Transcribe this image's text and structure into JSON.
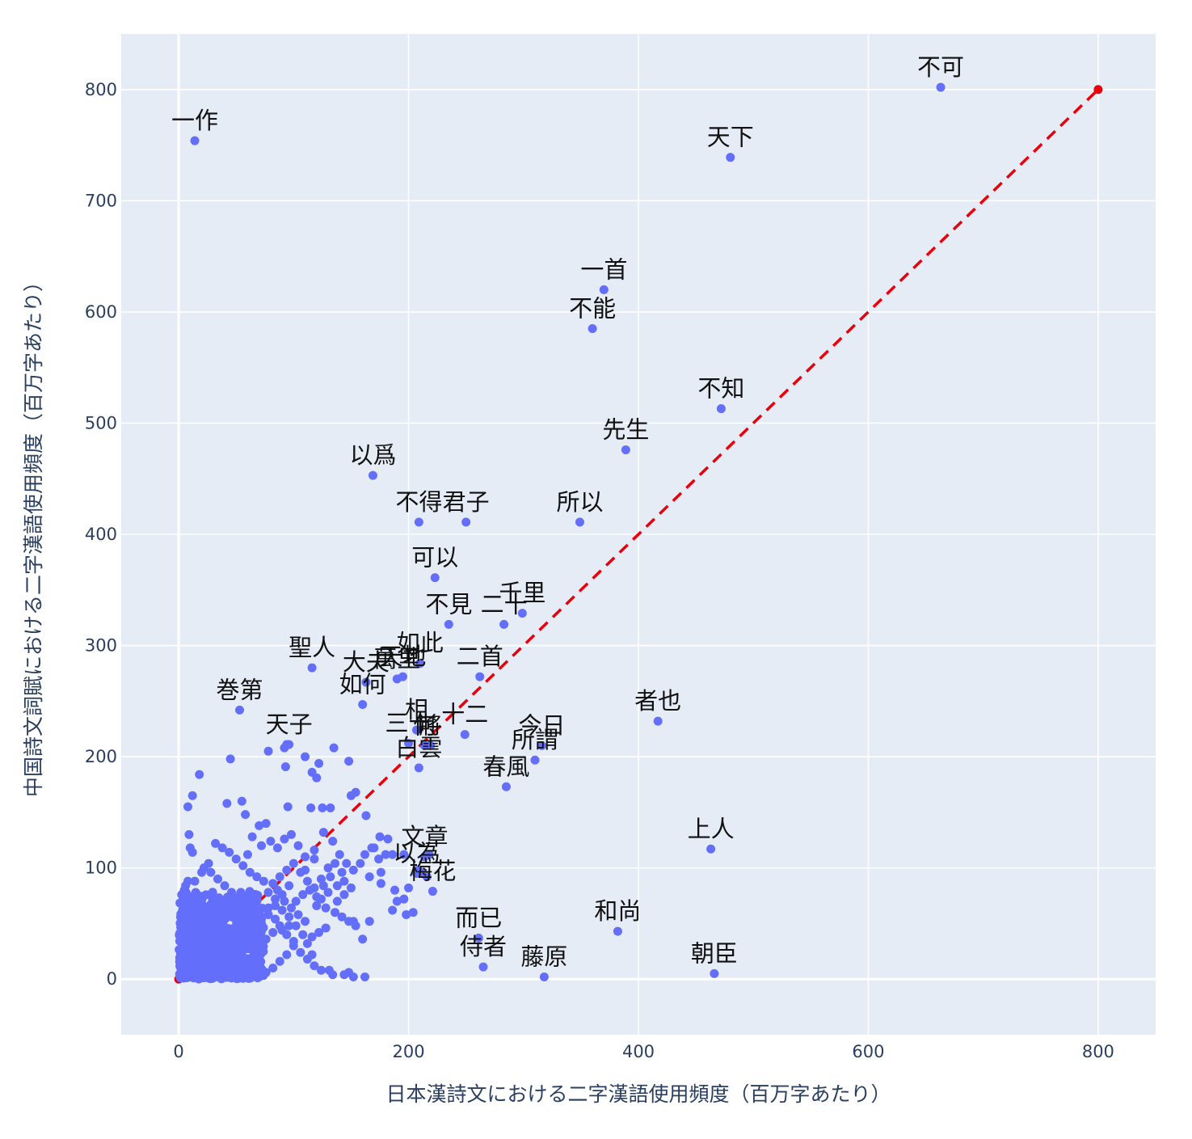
{
  "chart_data": {
    "type": "scatter",
    "xlabel": "日本漢詩文における二字漢語使用頻度（百万字あたり）",
    "ylabel": "中国詩文詞賦における二字漢語使用頻度（百万字あたり）",
    "xlim": [
      -50,
      850
    ],
    "ylim": [
      -50,
      850
    ],
    "xticks": [
      0,
      200,
      400,
      600,
      800
    ],
    "yticks": [
      0,
      100,
      200,
      300,
      400,
      500,
      600,
      700,
      800
    ],
    "grid": true,
    "point_color": "#636efa",
    "reference_line": {
      "x": [
        0,
        800
      ],
      "y": [
        0,
        800
      ],
      "color": "#e8000b",
      "style": "dashed"
    },
    "labeled_points": [
      {
        "label": "不可",
        "x": 663,
        "y": 802
      },
      {
        "label": "天下",
        "x": 480,
        "y": 739
      },
      {
        "label": "一作",
        "x": 14,
        "y": 754
      },
      {
        "label": "一首",
        "x": 370,
        "y": 620
      },
      {
        "label": "不能",
        "x": 360,
        "y": 585
      },
      {
        "label": "不知",
        "x": 472,
        "y": 513
      },
      {
        "label": "先生",
        "x": 389,
        "y": 476
      },
      {
        "label": "以爲",
        "x": 169,
        "y": 453
      },
      {
        "label": "不得",
        "x": 209,
        "y": 411
      },
      {
        "label": "君子",
        "x": 250,
        "y": 411
      },
      {
        "label": "所以",
        "x": 349,
        "y": 411
      },
      {
        "label": "可以",
        "x": 223,
        "y": 361
      },
      {
        "label": "千里",
        "x": 299,
        "y": 329
      },
      {
        "label": "不見",
        "x": 235,
        "y": 319
      },
      {
        "label": "二十",
        "x": 283,
        "y": 319
      },
      {
        "label": "聖人",
        "x": 116,
        "y": 280
      },
      {
        "label": "如此",
        "x": 210,
        "y": 284
      },
      {
        "label": "二首",
        "x": 262,
        "y": 272
      },
      {
        "label": "萬里",
        "x": 190,
        "y": 270
      },
      {
        "label": "天地",
        "x": 195,
        "y": 272
      },
      {
        "label": "大夫",
        "x": 163,
        "y": 267
      },
      {
        "label": "巻第",
        "x": 53,
        "y": 242
      },
      {
        "label": "者也",
        "x": 417,
        "y": 232
      },
      {
        "label": "如何",
        "x": 160,
        "y": 247
      },
      {
        "label": "十二",
        "x": 249,
        "y": 220
      },
      {
        "label": "三十",
        "x": 200,
        "y": 212
      },
      {
        "label": "相",
        "x": 207,
        "y": 224
      },
      {
        "label": "何",
        "x": 214,
        "y": 210
      },
      {
        "label": "將",
        "x": 219,
        "y": 210
      },
      {
        "label": "天子",
        "x": 96,
        "y": 211
      },
      {
        "label": "今日",
        "x": 316,
        "y": 210
      },
      {
        "label": "所謂",
        "x": 310,
        "y": 197
      },
      {
        "label": "春風",
        "x": 285,
        "y": 173
      },
      {
        "label": "白雲",
        "x": 209,
        "y": 190
      },
      {
        "label": "上人",
        "x": 463,
        "y": 117
      },
      {
        "label": "文章",
        "x": 214,
        "y": 110
      },
      {
        "label": "以為",
        "x": 207,
        "y": 95
      },
      {
        "label": "梅花",
        "x": 221,
        "y": 79
      },
      {
        "label": "和尚",
        "x": 382,
        "y": 43
      },
      {
        "label": "而已",
        "x": 261,
        "y": 37
      },
      {
        "label": "侍者",
        "x": 265,
        "y": 11
      },
      {
        "label": "藤原",
        "x": 318,
        "y": 2
      },
      {
        "label": "朝臣",
        "x": 466,
        "y": 5
      }
    ],
    "unlabeled_points": [
      [
        18,
        184
      ],
      [
        45,
        198
      ],
      [
        12,
        165
      ],
      [
        8,
        155
      ],
      [
        55,
        160
      ],
      [
        42,
        158
      ],
      [
        58,
        148
      ],
      [
        95,
        155
      ],
      [
        115,
        154
      ],
      [
        125,
        154
      ],
      [
        132,
        154
      ],
      [
        150,
        165
      ],
      [
        154,
        168
      ],
      [
        163,
        147
      ],
      [
        148,
        196
      ],
      [
        135,
        208
      ],
      [
        110,
        200
      ],
      [
        122,
        194
      ],
      [
        116,
        186
      ],
      [
        120,
        181
      ],
      [
        78,
        205
      ],
      [
        93,
        191
      ],
      [
        94,
        211
      ],
      [
        92,
        208
      ],
      [
        76,
        140
      ],
      [
        70,
        138
      ],
      [
        64,
        128
      ],
      [
        60,
        112
      ],
      [
        72,
        120
      ],
      [
        80,
        124
      ],
      [
        86,
        118
      ],
      [
        92,
        126
      ],
      [
        98,
        130
      ],
      [
        104,
        120
      ],
      [
        110,
        110
      ],
      [
        118,
        116
      ],
      [
        126,
        132
      ],
      [
        134,
        124
      ],
      [
        140,
        112
      ],
      [
        146,
        104
      ],
      [
        152,
        98
      ],
      [
        158,
        104
      ],
      [
        162,
        112
      ],
      [
        166,
        92
      ],
      [
        170,
        118
      ],
      [
        174,
        108
      ],
      [
        180,
        112
      ],
      [
        186,
        112
      ],
      [
        188,
        80
      ],
      [
        196,
        72
      ],
      [
        200,
        82
      ],
      [
        204,
        60
      ],
      [
        190,
        70
      ],
      [
        176,
        96
      ],
      [
        166,
        52
      ],
      [
        160,
        36
      ],
      [
        152,
        52
      ],
      [
        148,
        6
      ],
      [
        144,
        4
      ],
      [
        152,
        2
      ],
      [
        162,
        2
      ],
      [
        131,
        8
      ],
      [
        134,
        4
      ],
      [
        116,
        22
      ],
      [
        112,
        32
      ],
      [
        108,
        40
      ],
      [
        102,
        48
      ],
      [
        96,
        56
      ],
      [
        90,
        62
      ],
      [
        84,
        72
      ],
      [
        78,
        78
      ],
      [
        74,
        88
      ],
      [
        68,
        92
      ],
      [
        62,
        96
      ],
      [
        56,
        102
      ],
      [
        50,
        108
      ],
      [
        44,
        114
      ],
      [
        38,
        118
      ],
      [
        32,
        122
      ],
      [
        26,
        104
      ],
      [
        20,
        96
      ],
      [
        14,
        88
      ],
      [
        8,
        88
      ],
      [
        6,
        84
      ],
      [
        9,
        130
      ],
      [
        10,
        118
      ],
      [
        12,
        114
      ],
      [
        5,
        66
      ],
      [
        4,
        48
      ],
      [
        3,
        34
      ],
      [
        2,
        22
      ],
      [
        1,
        12
      ],
      [
        2,
        4
      ],
      [
        3,
        2
      ],
      [
        168,
        118
      ],
      [
        175,
        128
      ],
      [
        182,
        126
      ],
      [
        196,
        112
      ],
      [
        208,
        98
      ],
      [
        212,
        96
      ],
      [
        216,
        92
      ],
      [
        218,
        112
      ],
      [
        198,
        58
      ],
      [
        186,
        62
      ],
      [
        176,
        86
      ],
      [
        144,
        88
      ],
      [
        138,
        84
      ],
      [
        130,
        78
      ],
      [
        124,
        72
      ],
      [
        120,
        66
      ],
      [
        128,
        64
      ],
      [
        136,
        60
      ],
      [
        142,
        56
      ],
      [
        148,
        52
      ],
      [
        154,
        48
      ],
      [
        128,
        46
      ],
      [
        122,
        42
      ],
      [
        116,
        38
      ],
      [
        110,
        52
      ],
      [
        104,
        58
      ],
      [
        98,
        64
      ],
      [
        92,
        70
      ],
      [
        86,
        80
      ],
      [
        82,
        86
      ],
      [
        88,
        92
      ],
      [
        94,
        98
      ],
      [
        100,
        104
      ],
      [
        106,
        96
      ],
      [
        112,
        88
      ],
      [
        118,
        82
      ],
      [
        124,
        90
      ],
      [
        130,
        100
      ],
      [
        136,
        104
      ],
      [
        142,
        96
      ],
      [
        118,
        108
      ],
      [
        110,
        98
      ],
      [
        96,
        84
      ],
      [
        90,
        76
      ],
      [
        84,
        66
      ],
      [
        78,
        58
      ],
      [
        72,
        50
      ],
      [
        66,
        42
      ],
      [
        60,
        34
      ],
      [
        54,
        26
      ],
      [
        48,
        20
      ],
      [
        42,
        14
      ],
      [
        36,
        8
      ],
      [
        30,
        4
      ],
      [
        24,
        2
      ],
      [
        18,
        6
      ],
      [
        12,
        10
      ],
      [
        6,
        16
      ],
      [
        100,
        30
      ],
      [
        106,
        24
      ],
      [
        112,
        18
      ],
      [
        118,
        12
      ],
      [
        124,
        8
      ],
      [
        94,
        22
      ],
      [
        88,
        16
      ],
      [
        82,
        10
      ],
      [
        76,
        6
      ],
      [
        70,
        2
      ],
      [
        64,
        8
      ],
      [
        58,
        14
      ],
      [
        52,
        4
      ],
      [
        46,
        2
      ],
      [
        40,
        6
      ],
      [
        34,
        12
      ],
      [
        28,
        18
      ],
      [
        22,
        24
      ],
      [
        16,
        30
      ],
      [
        10,
        36
      ],
      [
        4,
        42
      ],
      [
        70,
        30
      ],
      [
        76,
        36
      ],
      [
        82,
        42
      ],
      [
        88,
        48
      ],
      [
        94,
        40
      ],
      [
        100,
        34
      ],
      [
        64,
        60
      ],
      [
        58,
        66
      ],
      [
        52,
        72
      ],
      [
        46,
        78
      ],
      [
        40,
        84
      ],
      [
        34,
        90
      ],
      [
        28,
        96
      ],
      [
        22,
        100
      ],
      [
        16,
        72
      ],
      [
        20,
        62
      ],
      [
        24,
        54
      ],
      [
        30,
        46
      ],
      [
        36,
        40
      ],
      [
        42,
        32
      ],
      [
        48,
        28
      ],
      [
        54,
        36
      ],
      [
        60,
        42
      ],
      [
        66,
        48
      ],
      [
        72,
        54
      ],
      [
        78,
        64
      ],
      [
        84,
        54
      ],
      [
        90,
        44
      ],
      [
        96,
        48
      ],
      [
        102,
        70
      ],
      [
        108,
        76
      ],
      [
        114,
        80
      ],
      [
        120,
        74
      ],
      [
        126,
        84
      ],
      [
        132,
        92
      ],
      [
        138,
        70
      ],
      [
        144,
        76
      ],
      [
        150,
        82
      ]
    ]
  }
}
